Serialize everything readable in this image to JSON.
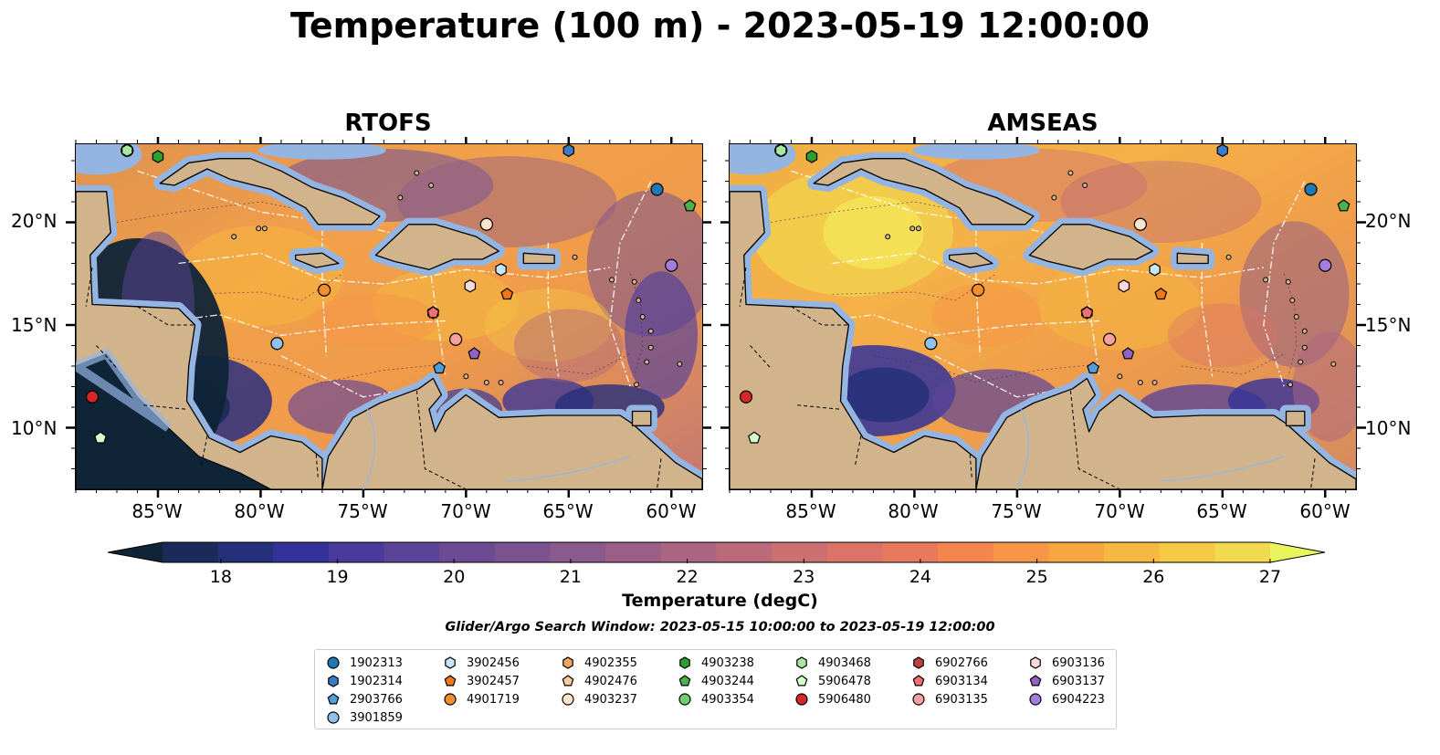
{
  "title": "Temperature (100 m) - 2023-05-19 12:00:00",
  "panels": [
    {
      "title": "RTOFS",
      "key": "rtofs"
    },
    {
      "title": "AMSEAS",
      "key": "amseas"
    }
  ],
  "map": {
    "extent": {
      "lon_min": -89,
      "lon_max": -58.5,
      "lat_min": 7,
      "lat_max": 23.8
    },
    "lat_ticks": [
      {
        "value": 20,
        "label": "20°N"
      },
      {
        "value": 15,
        "label": "15°N"
      },
      {
        "value": 10,
        "label": "10°N"
      }
    ],
    "lon_ticks": [
      {
        "value": -85,
        "label": "85°W"
      },
      {
        "value": -80,
        "label": "80°W"
      },
      {
        "value": -75,
        "label": "75°W"
      },
      {
        "value": -70,
        "label": "70°W"
      },
      {
        "value": -65,
        "label": "65°W"
      },
      {
        "value": -60,
        "label": "60°W"
      }
    ],
    "land_color": "#d2b48c",
    "shallow_color": "#94b5e2"
  },
  "colorbar": {
    "label": "Temperature (degC)",
    "min": 17.5,
    "max": 27,
    "ticks": [
      "18",
      "19",
      "20",
      "21",
      "22",
      "23",
      "24",
      "25",
      "26",
      "27"
    ],
    "colors": [
      "#0f2437",
      "#1b2a59",
      "#25307a",
      "#34329a",
      "#4a3a9e",
      "#5b4398",
      "#6c4b94",
      "#7a5290",
      "#8b5a8c",
      "#9b5f87",
      "#ab6582",
      "#bb6a79",
      "#cb6f70",
      "#db7467",
      "#e9795c",
      "#f2864e",
      "#f69646",
      "#f7a741",
      "#f6b840",
      "#f5c943",
      "#f1da4e",
      "#eaf45c"
    ]
  },
  "search_window": "Glider/Argo Search Window: 2023-05-15 10:00:00 to 2023-05-19 12:00:00",
  "floats": [
    {
      "id": "1902313",
      "marker": "circle",
      "color": "#1f77b4",
      "lon": -60.7,
      "lat": 21.6
    },
    {
      "id": "1902314",
      "marker": "hexagon",
      "color": "#3a7cc8",
      "lon": -65,
      "lat": 23.5
    },
    {
      "id": "2903766",
      "marker": "pentagon",
      "color": "#4f9ed8",
      "lon": -71.3,
      "lat": 12.9
    },
    {
      "id": "3901859",
      "marker": "circle",
      "color": "#8fc1ea",
      "lon": -79.2,
      "lat": 14.1
    },
    {
      "id": "3902456",
      "marker": "hexagon",
      "color": "#c6e6fa",
      "lon": -68.3,
      "lat": 17.7
    },
    {
      "id": "3902457",
      "marker": "pentagon",
      "color": "#f07818",
      "lon": -68,
      "lat": 16.5
    },
    {
      "id": "4901719",
      "marker": "circle",
      "color": "#f28e2c",
      "lon": -76.9,
      "lat": 16.7
    },
    {
      "id": "4902355",
      "marker": "hexagon",
      "color": "#f5a45e",
      "lon": -69,
      "lat": 19.9
    },
    {
      "id": "4902476",
      "marker": "pentagon",
      "color": "#fbc99a",
      "lon": -69,
      "lat": 19.9
    },
    {
      "id": "4903237",
      "marker": "circle",
      "color": "#fde4cc",
      "lon": -69,
      "lat": 19.9
    },
    {
      "id": "4903238",
      "marker": "hexagon",
      "color": "#2ca02c",
      "lon": -85,
      "lat": 23.2
    },
    {
      "id": "4903244",
      "marker": "pentagon",
      "color": "#4cb04c",
      "lon": -59.1,
      "lat": 20.8
    },
    {
      "id": "4903354",
      "marker": "circle",
      "color": "#6fcf6f",
      "lon": -86.5,
      "lat": 23.5
    },
    {
      "id": "4903468",
      "marker": "hexagon",
      "color": "#a6e8a0",
      "lon": -86.5,
      "lat": 23.5
    },
    {
      "id": "5906478",
      "marker": "pentagon",
      "color": "#d7ffcc",
      "lon": -87.8,
      "lat": 9.5
    },
    {
      "id": "5906480",
      "marker": "circle",
      "color": "#d62728",
      "lon": -88.2,
      "lat": 11.5
    },
    {
      "id": "6902766",
      "marker": "hexagon",
      "color": "#c0403f",
      "lon": -71.6,
      "lat": 15.6
    },
    {
      "id": "6903134",
      "marker": "pentagon",
      "color": "#f07070",
      "lon": -71.6,
      "lat": 15.6
    },
    {
      "id": "6903135",
      "marker": "circle",
      "color": "#f4a0a0",
      "lon": -70.5,
      "lat": 14.3
    },
    {
      "id": "6903136",
      "marker": "hexagon",
      "color": "#fadada",
      "lon": -69.8,
      "lat": 16.9
    },
    {
      "id": "6903137",
      "marker": "pentagon",
      "color": "#8e63c4",
      "lon": -69.6,
      "lat": 13.6
    },
    {
      "id": "6904223",
      "marker": "circle",
      "color": "#a27ddb",
      "lon": -60,
      "lat": 17.9
    }
  ]
}
